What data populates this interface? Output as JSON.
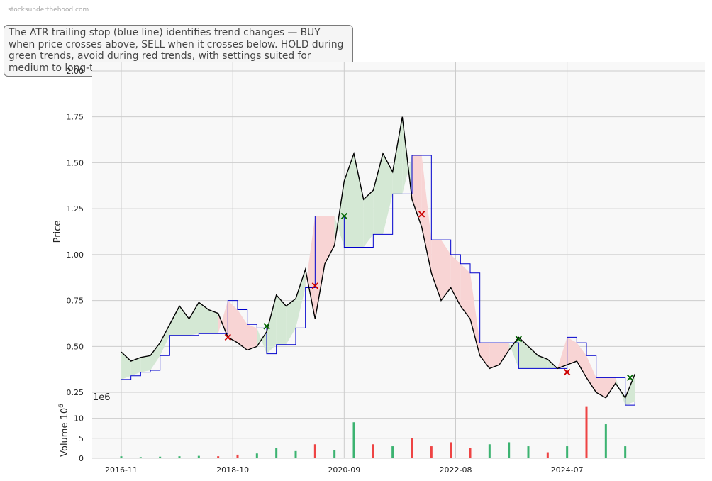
{
  "watermark": "stocksunderthehood.com",
  "annotation": "The ATR trailing stop (blue line) identifies trend changes — BUY when price crosses above, SELL when it crosses below. HOLD during green trends, avoid during red trends, with settings suited for medium to long-term investors.",
  "colors": {
    "price": "#000000",
    "stop": "#0000cc",
    "bull_fill": "#d4e8d4",
    "bear_fill": "#f8d4d4",
    "buy_marker": "#006400",
    "sell_marker": "#cc0000",
    "vol_up": "#3cb371",
    "vol_down": "#ee4444",
    "panel_bg": "#f8f8f8",
    "grid": "#cccccc"
  },
  "chart_data": [
    {
      "type": "line",
      "ylabel": "Price",
      "ylim": [
        0.2,
        2.05
      ],
      "yticks": [
        "0.25",
        "0.50",
        "0.75",
        "1.00",
        "1.25",
        "1.50",
        "1.75",
        "2.00"
      ],
      "xticks": [
        "2016-11",
        "2018-10",
        "2020-09",
        "2022-08",
        "2024-07"
      ],
      "x_start": "2016-11",
      "x_end": "2025-10",
      "grid": true,
      "series": [
        {
          "role": "price",
          "points": [
            [
              "2016-11",
              0.47
            ],
            [
              "2017-01",
              0.42
            ],
            [
              "2017-03",
              0.44
            ],
            [
              "2017-05",
              0.45
            ],
            [
              "2017-07",
              0.52
            ],
            [
              "2017-09",
              0.62
            ],
            [
              "2017-11",
              0.72
            ],
            [
              "2018-01",
              0.65
            ],
            [
              "2018-03",
              0.74
            ],
            [
              "2018-05",
              0.7
            ],
            [
              "2018-07",
              0.68
            ],
            [
              "2018-09",
              0.55
            ],
            [
              "2018-11",
              0.52
            ],
            [
              "2019-01",
              0.48
            ],
            [
              "2019-03",
              0.5
            ],
            [
              "2019-05",
              0.58
            ],
            [
              "2019-07",
              0.78
            ],
            [
              "2019-09",
              0.72
            ],
            [
              "2019-11",
              0.76
            ],
            [
              "2020-01",
              0.92
            ],
            [
              "2020-03",
              0.65
            ],
            [
              "2020-05",
              0.95
            ],
            [
              "2020-07",
              1.05
            ],
            [
              "2020-09",
              1.4
            ],
            [
              "2020-11",
              1.55
            ],
            [
              "2021-01",
              1.3
            ],
            [
              "2021-03",
              1.35
            ],
            [
              "2021-05",
              1.55
            ],
            [
              "2021-07",
              1.45
            ],
            [
              "2021-09",
              1.75
            ],
            [
              "2021-11",
              1.3
            ],
            [
              "2022-01",
              1.15
            ],
            [
              "2022-03",
              0.9
            ],
            [
              "2022-05",
              0.75
            ],
            [
              "2022-07",
              0.82
            ],
            [
              "2022-09",
              0.72
            ],
            [
              "2022-11",
              0.65
            ],
            [
              "2023-01",
              0.45
            ],
            [
              "2023-03",
              0.38
            ],
            [
              "2023-05",
              0.4
            ],
            [
              "2023-07",
              0.48
            ],
            [
              "2023-09",
              0.55
            ],
            [
              "2023-11",
              0.5
            ],
            [
              "2024-01",
              0.45
            ],
            [
              "2024-03",
              0.43
            ],
            [
              "2024-05",
              0.38
            ],
            [
              "2024-07",
              0.4
            ],
            [
              "2024-09",
              0.42
            ],
            [
              "2024-11",
              0.33
            ],
            [
              "2025-01",
              0.25
            ],
            [
              "2025-03",
              0.22
            ],
            [
              "2025-05",
              0.3
            ],
            [
              "2025-07",
              0.22
            ],
            [
              "2025-09",
              0.35
            ]
          ]
        },
        {
          "role": "atr_trailing_stop",
          "points": [
            [
              "2016-11",
              0.32
            ],
            [
              "2017-01",
              0.34
            ],
            [
              "2017-03",
              0.36
            ],
            [
              "2017-05",
              0.37
            ],
            [
              "2017-07",
              0.45
            ],
            [
              "2017-09",
              0.56
            ],
            [
              "2017-11",
              0.56
            ],
            [
              "2018-01",
              0.56
            ],
            [
              "2018-03",
              0.57
            ],
            [
              "2018-05",
              0.57
            ],
            [
              "2018-07",
              0.57
            ],
            [
              "2018-09",
              0.75
            ],
            [
              "2018-11",
              0.7
            ],
            [
              "2019-01",
              0.62
            ],
            [
              "2019-03",
              0.6
            ],
            [
              "2019-05",
              0.46
            ],
            [
              "2019-07",
              0.51
            ],
            [
              "2019-09",
              0.51
            ],
            [
              "2019-11",
              0.6
            ],
            [
              "2020-01",
              0.82
            ],
            [
              "2020-03",
              1.21
            ],
            [
              "2020-05",
              1.21
            ],
            [
              "2020-07",
              1.21
            ],
            [
              "2020-09",
              1.04
            ],
            [
              "2020-11",
              1.04
            ],
            [
              "2021-01",
              1.04
            ],
            [
              "2021-03",
              1.11
            ],
            [
              "2021-05",
              1.11
            ],
            [
              "2021-07",
              1.33
            ],
            [
              "2021-09",
              1.33
            ],
            [
              "2021-11",
              1.54
            ],
            [
              "2022-01",
              1.54
            ],
            [
              "2022-03",
              1.08
            ],
            [
              "2022-05",
              1.08
            ],
            [
              "2022-07",
              1.0
            ],
            [
              "2022-09",
              0.95
            ],
            [
              "2022-11",
              0.9
            ],
            [
              "2023-01",
              0.52
            ],
            [
              "2023-03",
              0.52
            ],
            [
              "2023-05",
              0.52
            ],
            [
              "2023-07",
              0.52
            ],
            [
              "2023-09",
              0.38
            ],
            [
              "2023-11",
              0.38
            ],
            [
              "2024-01",
              0.38
            ],
            [
              "2024-03",
              0.38
            ],
            [
              "2024-05",
              0.38
            ],
            [
              "2024-07",
              0.55
            ],
            [
              "2024-09",
              0.52
            ],
            [
              "2024-11",
              0.45
            ],
            [
              "2025-01",
              0.33
            ],
            [
              "2025-03",
              0.33
            ],
            [
              "2025-05",
              0.33
            ],
            [
              "2025-07",
              0.18
            ],
            [
              "2025-09",
              0.2
            ]
          ]
        }
      ],
      "signals": [
        {
          "type": "SELL",
          "date": "2018-09",
          "price": 0.55
        },
        {
          "type": "BUY",
          "date": "2019-05",
          "price": 0.61
        },
        {
          "type": "SELL",
          "date": "2020-03",
          "price": 0.83
        },
        {
          "type": "BUY",
          "date": "2020-09",
          "price": 1.21
        },
        {
          "type": "SELL",
          "date": "2022-01",
          "price": 1.22
        },
        {
          "type": "BUY",
          "date": "2023-09",
          "price": 0.54
        },
        {
          "type": "SELL",
          "date": "2024-07",
          "price": 0.36
        },
        {
          "type": "BUY",
          "date": "2025-08",
          "price": 0.33
        }
      ]
    },
    {
      "type": "bar",
      "ylabel": "Volume",
      "ylabel_exponent": "6",
      "offset_label": "1e6",
      "ylim": [
        0,
        14
      ],
      "yticks": [
        "0",
        "5",
        "10"
      ],
      "x_start": "2016-11",
      "x_end": "2025-10",
      "categories": [
        "2016-11",
        "2017-03",
        "2017-07",
        "2017-11",
        "2018-03",
        "2018-07",
        "2018-11",
        "2019-03",
        "2019-07",
        "2019-11",
        "2020-03",
        "2020-07",
        "2020-11",
        "2021-03",
        "2021-07",
        "2021-11",
        "2022-03",
        "2022-07",
        "2022-11",
        "2023-03",
        "2023-07",
        "2023-11",
        "2024-03",
        "2024-07",
        "2024-11",
        "2025-03",
        "2025-07"
      ],
      "values": [
        0.5,
        0.3,
        0.4,
        0.5,
        0.6,
        0.5,
        0.9,
        1.2,
        2.5,
        1.8,
        3.5,
        2.0,
        9.0,
        3.5,
        3.0,
        5.0,
        3.0,
        4.0,
        2.5,
        3.5,
        4.0,
        3.0,
        1.5,
        3.0,
        13.0,
        8.5,
        3.0
      ],
      "up": [
        true,
        true,
        true,
        true,
        true,
        false,
        false,
        true,
        true,
        true,
        false,
        true,
        true,
        false,
        true,
        false,
        false,
        false,
        false,
        true,
        true,
        true,
        false,
        true,
        false,
        true,
        true
      ]
    }
  ]
}
